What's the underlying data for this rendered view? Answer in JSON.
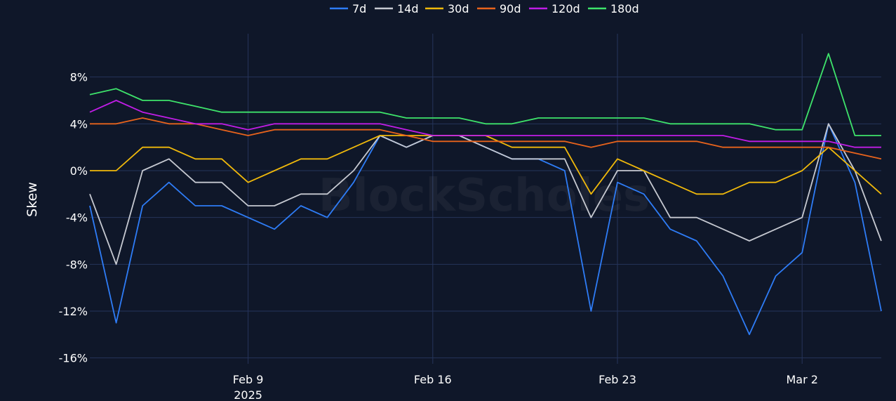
{
  "chart_data": {
    "type": "line",
    "title": "",
    "xlabel": "",
    "ylabel": "Skew",
    "y_unit": "%",
    "watermark": "BlockScholes",
    "x_range": [
      "2025-02-03",
      "2025-03-05"
    ],
    "ylim": [
      -16.5,
      10.5
    ],
    "y_ticks": [
      8,
      4,
      0,
      -4,
      -8,
      -12,
      -16
    ],
    "y_tick_labels": [
      "8%",
      "4%",
      "0%",
      "-4%",
      "-8%",
      "-12%",
      "-16%"
    ],
    "x_ticks": [
      "2025-02-09",
      "2025-02-16",
      "2025-02-23",
      "2025-03-02"
    ],
    "x_tick_labels": [
      "Feb 9",
      "Feb 16",
      "Feb 23",
      "Mar 2"
    ],
    "x_tick_year": "2025",
    "grid": true,
    "legend": "top-center",
    "series": [
      {
        "name": "7d",
        "color": "#2e7cf6",
        "x": [
          "2025-02-03",
          "2025-02-04",
          "2025-02-05",
          "2025-02-06",
          "2025-02-07",
          "2025-02-08",
          "2025-02-09",
          "2025-02-10",
          "2025-02-11",
          "2025-02-12",
          "2025-02-13",
          "2025-02-14",
          "2025-02-15",
          "2025-02-16",
          "2025-02-17",
          "2025-02-18",
          "2025-02-19",
          "2025-02-20",
          "2025-02-21",
          "2025-02-22",
          "2025-02-23",
          "2025-02-24",
          "2025-02-25",
          "2025-02-26",
          "2025-02-27",
          "2025-02-28",
          "2025-03-01",
          "2025-03-02",
          "2025-03-03",
          "2025-03-04",
          "2025-03-05"
        ],
        "y": [
          -3,
          -13,
          -3,
          -1,
          -3,
          -3,
          -4,
          -5,
          -3,
          -4,
          -1,
          3,
          2,
          3,
          3,
          2,
          1,
          1,
          0,
          -12,
          -1,
          -2,
          -5,
          -6,
          -9,
          -14,
          -9,
          -7,
          4,
          -1,
          -12
        ]
      },
      {
        "name": "14d",
        "color": "#c6c9d1",
        "x": [
          "2025-02-03",
          "2025-02-04",
          "2025-02-05",
          "2025-02-06",
          "2025-02-07",
          "2025-02-08",
          "2025-02-09",
          "2025-02-10",
          "2025-02-11",
          "2025-02-12",
          "2025-02-13",
          "2025-02-14",
          "2025-02-15",
          "2025-02-16",
          "2025-02-17",
          "2025-02-18",
          "2025-02-19",
          "2025-02-20",
          "2025-02-21",
          "2025-02-22",
          "2025-02-23",
          "2025-02-24",
          "2025-02-25",
          "2025-02-26",
          "2025-02-27",
          "2025-02-28",
          "2025-03-01",
          "2025-03-02",
          "2025-03-03",
          "2025-03-04",
          "2025-03-05"
        ],
        "y": [
          -2,
          -8,
          0,
          1,
          -1,
          -1,
          -3,
          -3,
          -2,
          -2,
          0,
          3,
          2,
          3,
          3,
          2,
          1,
          1,
          1,
          -4,
          0,
          0,
          -4,
          -4,
          -5,
          -6,
          -5,
          -4,
          4,
          0,
          -6
        ]
      },
      {
        "name": "30d",
        "color": "#f0b90b",
        "x": [
          "2025-02-03",
          "2025-02-04",
          "2025-02-05",
          "2025-02-06",
          "2025-02-07",
          "2025-02-08",
          "2025-02-09",
          "2025-02-10",
          "2025-02-11",
          "2025-02-12",
          "2025-02-13",
          "2025-02-14",
          "2025-02-15",
          "2025-02-16",
          "2025-02-17",
          "2025-02-18",
          "2025-02-19",
          "2025-02-20",
          "2025-02-21",
          "2025-02-22",
          "2025-02-23",
          "2025-02-24",
          "2025-02-25",
          "2025-02-26",
          "2025-02-27",
          "2025-02-28",
          "2025-03-01",
          "2025-03-02",
          "2025-03-03",
          "2025-03-04",
          "2025-03-05"
        ],
        "y": [
          0,
          0,
          2,
          2,
          1,
          1,
          -1,
          0,
          1,
          1,
          2,
          3,
          3,
          3,
          3,
          3,
          2,
          2,
          2,
          -2,
          1,
          0,
          -1,
          -2,
          -2,
          -1,
          -1,
          0,
          2,
          0,
          -2
        ]
      },
      {
        "name": "90d",
        "color": "#e8631c",
        "x": [
          "2025-02-03",
          "2025-02-04",
          "2025-02-05",
          "2025-02-06",
          "2025-02-07",
          "2025-02-08",
          "2025-02-09",
          "2025-02-10",
          "2025-02-11",
          "2025-02-12",
          "2025-02-13",
          "2025-02-14",
          "2025-02-15",
          "2025-02-16",
          "2025-02-17",
          "2025-02-18",
          "2025-02-19",
          "2025-02-20",
          "2025-02-21",
          "2025-02-22",
          "2025-02-23",
          "2025-02-24",
          "2025-02-25",
          "2025-02-26",
          "2025-02-27",
          "2025-02-28",
          "2025-03-01",
          "2025-03-02",
          "2025-03-03",
          "2025-03-04",
          "2025-03-05"
        ],
        "y": [
          4,
          4,
          4.5,
          4,
          4,
          3.5,
          3,
          3.5,
          3.5,
          3.5,
          3.5,
          3.5,
          3,
          2.5,
          2.5,
          2.5,
          2.5,
          2.5,
          2.5,
          2,
          2.5,
          2.5,
          2.5,
          2.5,
          2,
          2,
          2,
          2,
          2,
          1.5,
          1
        ]
      },
      {
        "name": "120d",
        "color": "#c01de6",
        "x": [
          "2025-02-03",
          "2025-02-04",
          "2025-02-05",
          "2025-02-06",
          "2025-02-07",
          "2025-02-08",
          "2025-02-09",
          "2025-02-10",
          "2025-02-11",
          "2025-02-12",
          "2025-02-13",
          "2025-02-14",
          "2025-02-15",
          "2025-02-16",
          "2025-02-17",
          "2025-02-18",
          "2025-02-19",
          "2025-02-20",
          "2025-02-21",
          "2025-02-22",
          "2025-02-23",
          "2025-02-24",
          "2025-02-25",
          "2025-02-26",
          "2025-02-27",
          "2025-02-28",
          "2025-03-01",
          "2025-03-02",
          "2025-03-03",
          "2025-03-04",
          "2025-03-05"
        ],
        "y": [
          5,
          6,
          5,
          4.5,
          4,
          4,
          3.5,
          4,
          4,
          4,
          4,
          4,
          3.5,
          3,
          3,
          3,
          3,
          3,
          3,
          3,
          3,
          3,
          3,
          3,
          3,
          2.5,
          2.5,
          2.5,
          2.5,
          2,
          2
        ]
      },
      {
        "name": "180d",
        "color": "#3ee36b",
        "x": [
          "2025-02-03",
          "2025-02-04",
          "2025-02-05",
          "2025-02-06",
          "2025-02-07",
          "2025-02-08",
          "2025-02-09",
          "2025-02-10",
          "2025-02-11",
          "2025-02-12",
          "2025-02-13",
          "2025-02-14",
          "2025-02-15",
          "2025-02-16",
          "2025-02-17",
          "2025-02-18",
          "2025-02-19",
          "2025-02-20",
          "2025-02-21",
          "2025-02-22",
          "2025-02-23",
          "2025-02-24",
          "2025-02-25",
          "2025-02-26",
          "2025-02-27",
          "2025-02-28",
          "2025-03-01",
          "2025-03-02",
          "2025-03-03",
          "2025-03-04",
          "2025-03-05"
        ],
        "y": [
          6.5,
          7,
          6,
          6,
          5.5,
          5,
          5,
          5,
          5,
          5,
          5,
          5,
          4.5,
          4.5,
          4.5,
          4,
          4,
          4.5,
          4.5,
          4.5,
          4.5,
          4.5,
          4,
          4,
          4,
          4,
          3.5,
          3.5,
          10,
          3,
          3
        ]
      }
    ]
  }
}
